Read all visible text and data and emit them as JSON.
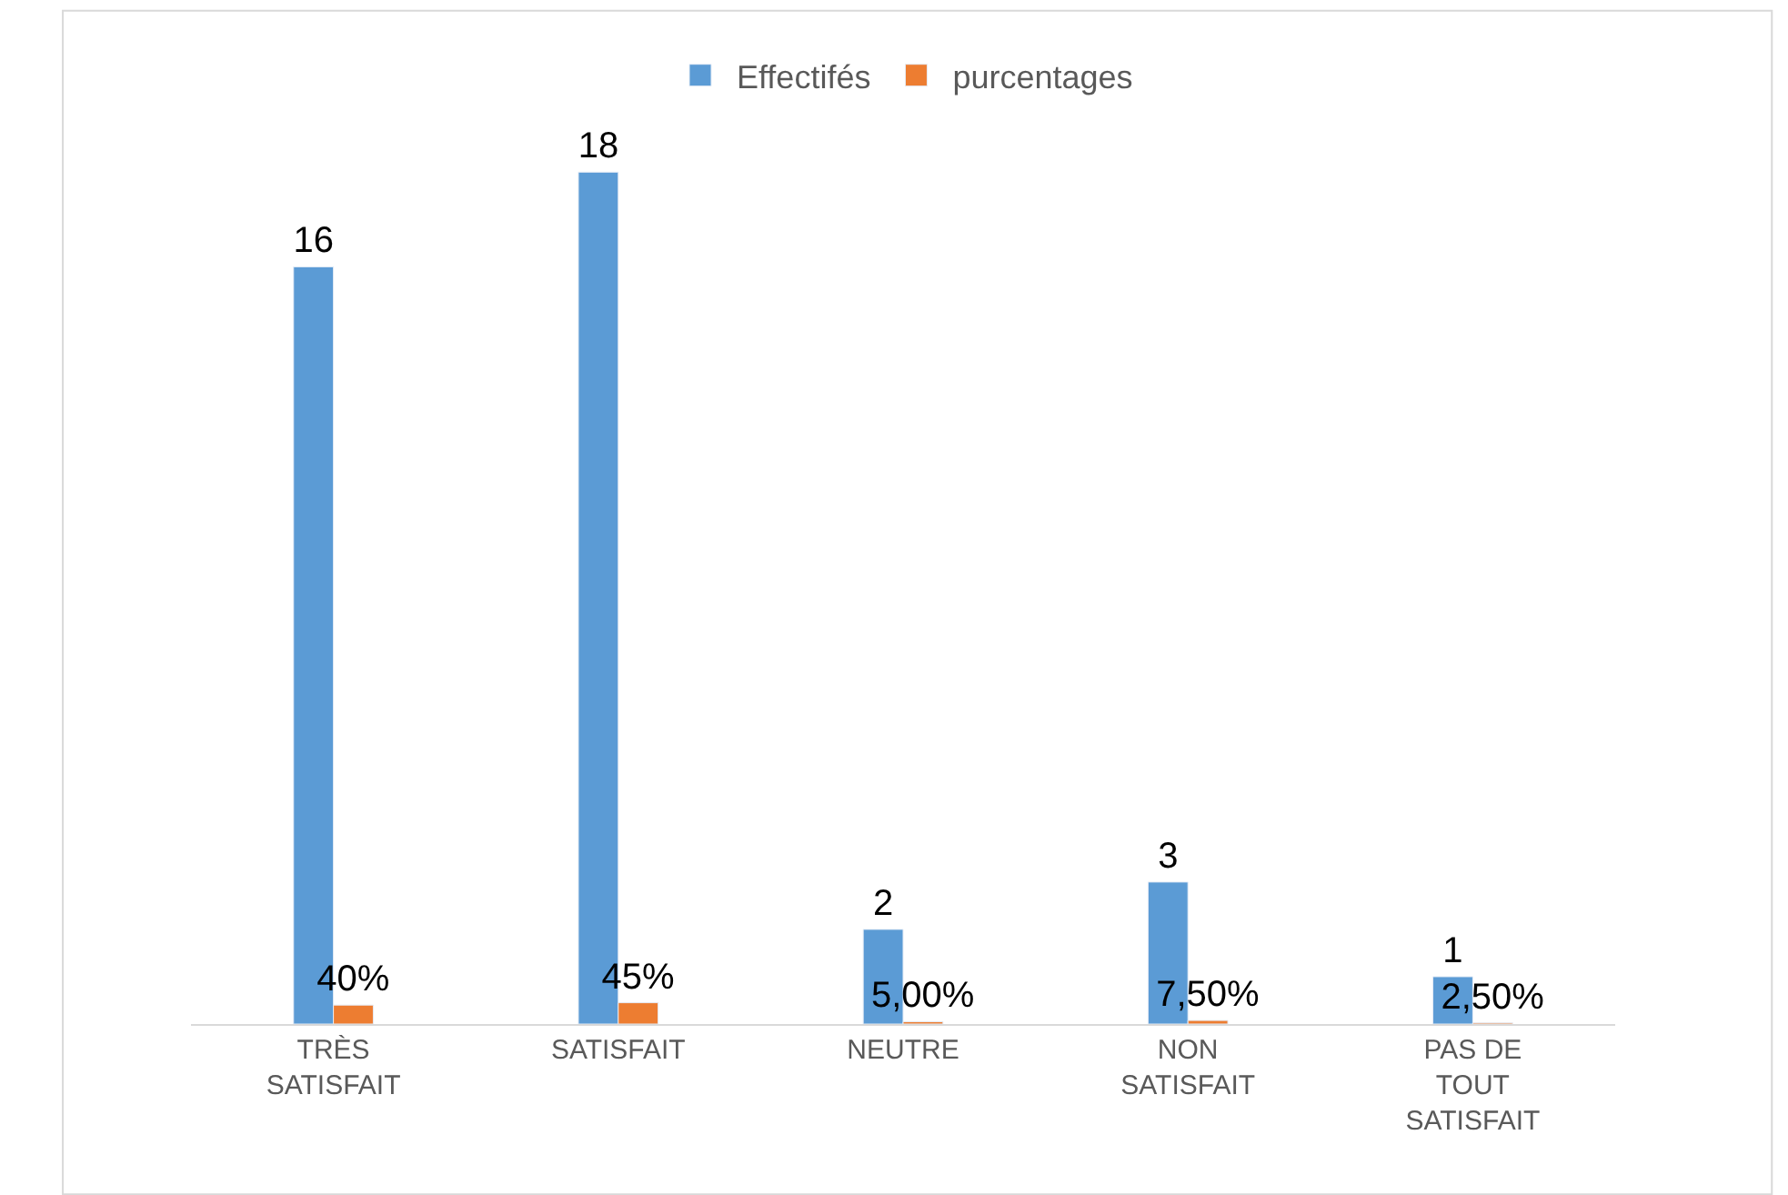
{
  "chart_data": {
    "type": "bar",
    "categories": [
      "TRÈS SATISFAIT",
      "SATISFAIT",
      "NEUTRE",
      "NON SATISFAIT",
      "PAS DE TOUT SATISFAIT"
    ],
    "series": [
      {
        "name": "Effectifés",
        "color": "#5b9bd5",
        "values": [
          16,
          18,
          2,
          3,
          1
        ],
        "value_labels": [
          "16",
          "18",
          "2",
          "3",
          "1"
        ]
      },
      {
        "name": "purcentages",
        "color": "#ed7d31",
        "values": [
          0.4,
          0.45,
          0.05,
          0.075,
          0.025
        ],
        "value_labels": [
          "40%",
          "45%",
          "5,00%",
          "7,50%",
          "2,50%"
        ]
      }
    ],
    "tick_labels": "x",
    "legend": "top"
  }
}
